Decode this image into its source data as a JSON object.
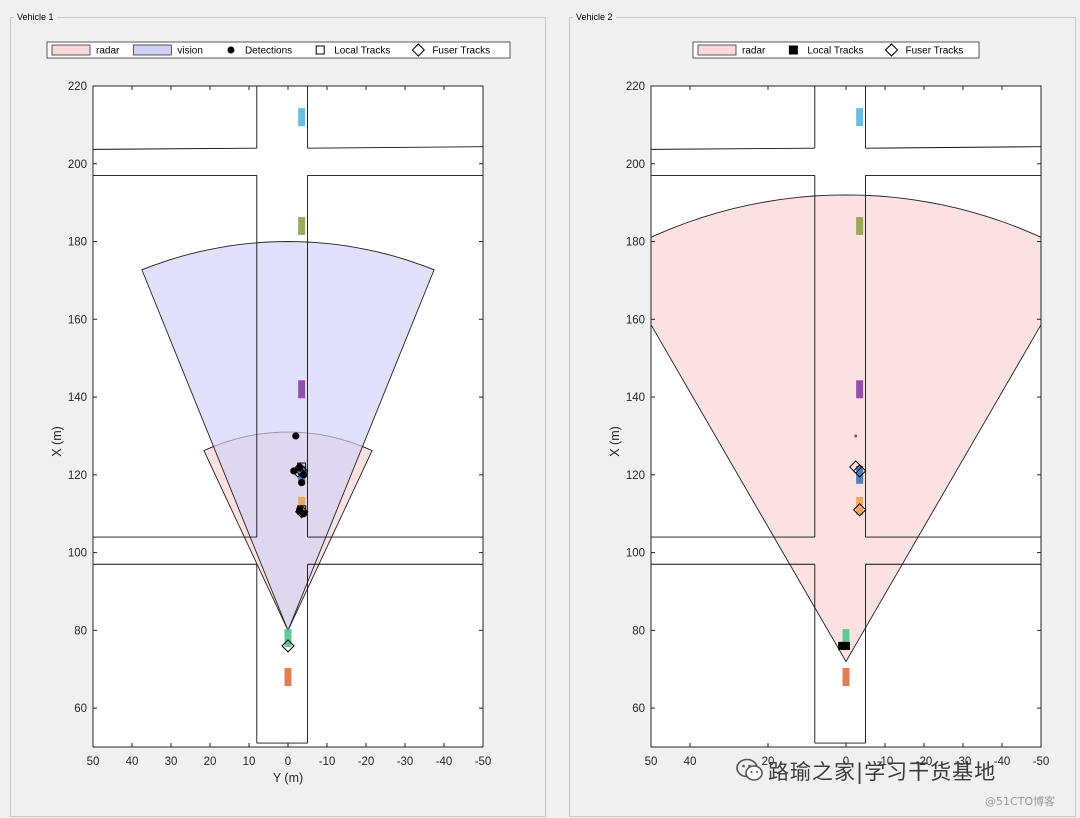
{
  "panels": {
    "vehicle1_title": "Vehicle 1",
    "vehicle2_title": "Vehicle 2"
  },
  "watermark": {
    "text": "路瑜之家|学习干货基地",
    "site": "@51CTO博客",
    "icon": "wechat-icon"
  },
  "colors": {
    "radar_fill": "#fbd9d9",
    "vision_fill": "#cfd0f7",
    "overlap_fill": "#dcc6e8",
    "vehicle_blue": "#3c74b5",
    "vehicle_orange": "#eba252",
    "vehicle_purple": "#8b3fa5",
    "vehicle_olive": "#8da34a",
    "vehicle_cyan": "#59b7e6",
    "vehicle_green": "#4cc58e",
    "vehicle_red": "#e0703f"
  },
  "chart_data": [
    {
      "type": "scatter",
      "name": "Vehicle 1",
      "xlabel": "Y (m)",
      "ylabel": "X (m)",
      "xlim": [
        50,
        -50
      ],
      "ylim": [
        50,
        220
      ],
      "x_reversed": true,
      "xticks": [
        50,
        40,
        30,
        20,
        10,
        0,
        -10,
        -20,
        -30,
        -40,
        -50
      ],
      "yticks": [
        60,
        80,
        100,
        120,
        140,
        160,
        180,
        200,
        220
      ],
      "legend": [
        "radar",
        "vision",
        "Detections",
        "Local Tracks",
        "Fuser Tracks"
      ],
      "legend_placement": "top, outside",
      "roads": {
        "vertical_road_y": [
          8,
          -5
        ],
        "horizontal_road_1_x": [
          97,
          104
        ],
        "horizontal_road_2_x": [
          197,
          204
        ]
      },
      "coverage": [
        {
          "name": "radar",
          "apex": [
            0,
            80
          ],
          "range": 51,
          "half_angle_deg": 25
        },
        {
          "name": "vision",
          "apex": [
            0,
            80
          ],
          "range": 100,
          "half_angle_deg": 22
        }
      ],
      "vehicles": [
        {
          "color": "vehicle_cyan",
          "y": -3.5,
          "x": 212
        },
        {
          "color": "vehicle_olive",
          "y": -3.5,
          "x": 184
        },
        {
          "color": "vehicle_purple",
          "y": -3.5,
          "x": 142
        },
        {
          "color": "vehicle_blue",
          "y": -3.5,
          "x": 120
        },
        {
          "color": "vehicle_orange",
          "y": -3.5,
          "x": 112
        },
        {
          "color": "vehicle_green",
          "y": 0,
          "x": 78
        },
        {
          "color": "vehicle_red",
          "y": 0,
          "x": 68
        }
      ],
      "detections": [
        {
          "y": -2,
          "x": 130
        },
        {
          "y": -1.5,
          "x": 121
        },
        {
          "y": -3,
          "x": 122
        },
        {
          "y": -4,
          "x": 120
        },
        {
          "y": -3.5,
          "x": 118
        },
        {
          "y": -3,
          "x": 111
        },
        {
          "y": -4,
          "x": 110
        }
      ],
      "local_tracks": [
        {
          "y": -3.5,
          "x": 122
        },
        {
          "y": -3.5,
          "x": 111
        }
      ],
      "fuser_tracks": [
        {
          "y": -2.5,
          "x": 121
        },
        {
          "y": -3.5,
          "x": 121
        },
        {
          "y": -3.5,
          "x": 110.5
        },
        {
          "y": 0,
          "x": 76
        }
      ]
    },
    {
      "type": "scatter",
      "name": "Vehicle 2",
      "xlabel": "Y (m)",
      "ylabel": "X (m)",
      "xlim": [
        50,
        -50
      ],
      "ylim": [
        50,
        220
      ],
      "x_reversed": true,
      "xticks": [
        50,
        40,
        20,
        0,
        -10,
        -20,
        -30,
        -40,
        -50
      ],
      "yticks": [
        60,
        80,
        100,
        120,
        140,
        160,
        180,
        200,
        220
      ],
      "legend": [
        "radar",
        "Local Tracks",
        "Fuser Tracks"
      ],
      "legend_placement": "top, outside",
      "roads": {
        "vertical_road_y": [
          8,
          -5
        ],
        "horizontal_road_1_x": [
          97,
          104
        ],
        "horizontal_road_2_x": [
          197,
          204
        ]
      },
      "coverage": [
        {
          "name": "radar",
          "apex": [
            0,
            72
          ],
          "range": 120,
          "half_angle_deg": 30
        }
      ],
      "vehicles": [
        {
          "color": "vehicle_cyan",
          "y": -3.5,
          "x": 212
        },
        {
          "color": "vehicle_olive",
          "y": -3.5,
          "x": 184
        },
        {
          "color": "vehicle_purple",
          "y": -3.5,
          "x": 142
        },
        {
          "color": "vehicle_blue",
          "y": -3.5,
          "x": 120
        },
        {
          "color": "vehicle_orange",
          "y": -3.5,
          "x": 112
        },
        {
          "color": "vehicle_green",
          "y": 0,
          "x": 78
        },
        {
          "color": "vehicle_red",
          "y": 0,
          "x": 68
        }
      ],
      "detections": [
        {
          "y": -2.5,
          "x": 130
        }
      ],
      "local_tracks": [
        {
          "y": 0,
          "x": 76
        },
        {
          "y": 1,
          "x": 76
        }
      ],
      "fuser_tracks": [
        {
          "y": -2.5,
          "x": 122
        },
        {
          "y": -3.5,
          "x": 121
        },
        {
          "y": -3.5,
          "x": 111
        }
      ]
    }
  ]
}
